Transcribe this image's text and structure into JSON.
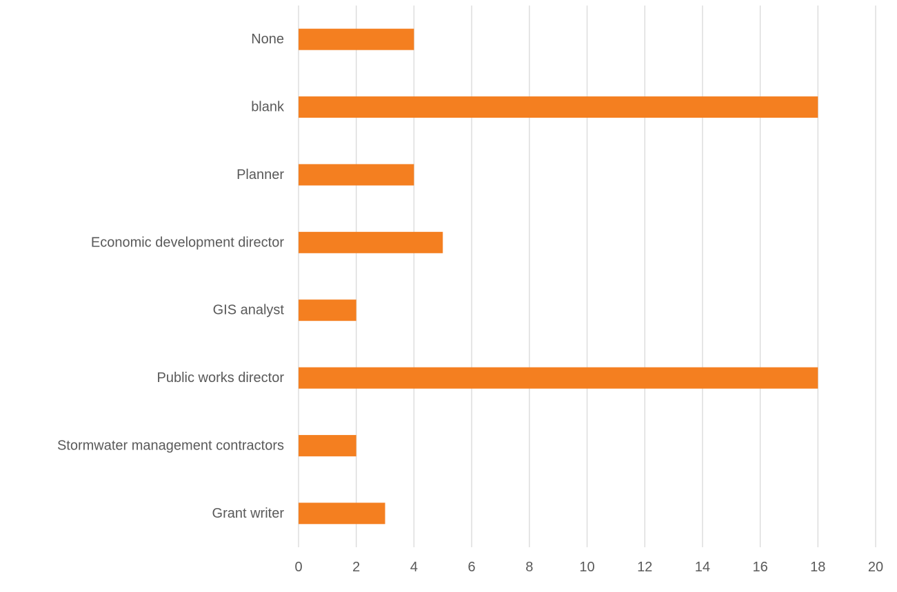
{
  "chart_data": {
    "type": "bar",
    "orientation": "horizontal",
    "categories": [
      "None",
      "blank",
      "Planner",
      "Economic development director",
      "GIS analyst",
      "Public works director",
      "Stormwater management contractors",
      "Grant writer"
    ],
    "values": [
      4,
      18,
      4,
      5,
      2,
      18,
      2,
      3
    ],
    "xlim": [
      0,
      20
    ],
    "xticks": [
      "0",
      "2",
      "4",
      "6",
      "8",
      "10",
      "12",
      "14",
      "16",
      "18",
      "20"
    ],
    "grid": "vertical",
    "bar_color": "#f47f20",
    "title": "",
    "xlabel": "",
    "ylabel": "",
    "legend": "none"
  }
}
